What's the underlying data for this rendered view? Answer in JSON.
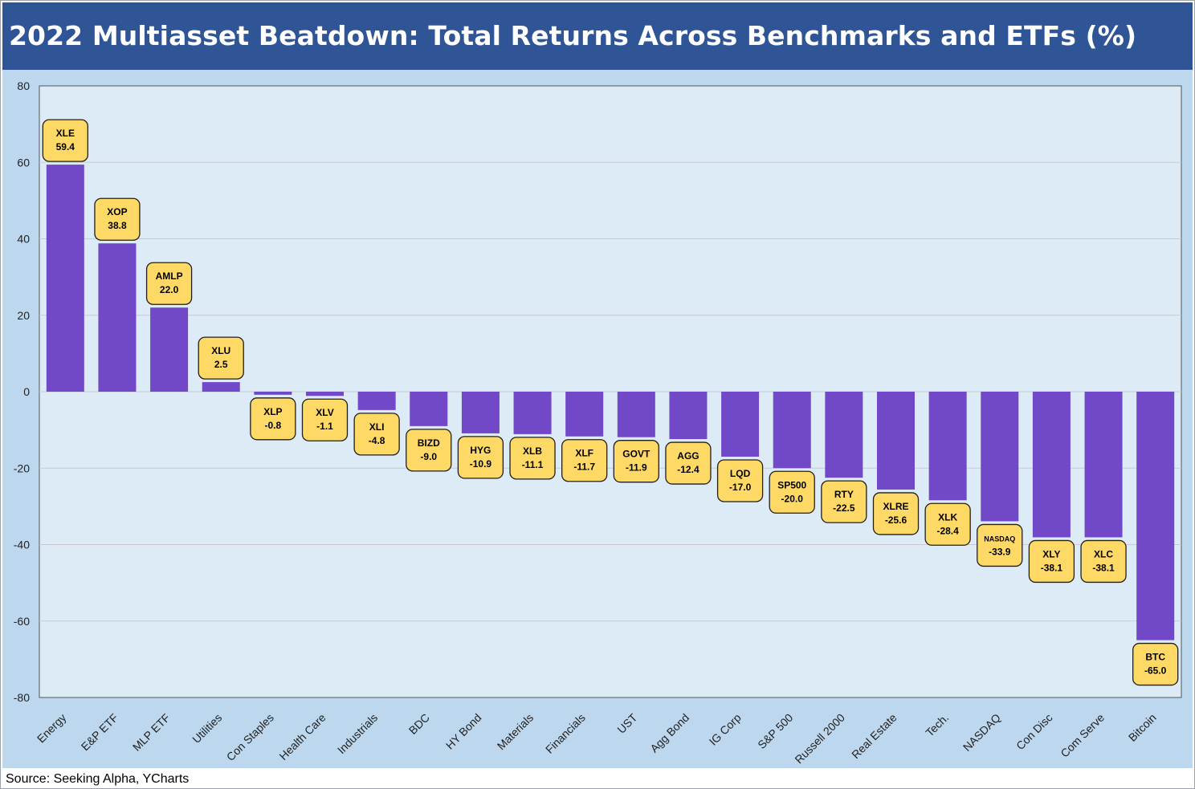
{
  "title": "2022 Multiasset Beatdown: Total Returns Across Benchmarks and ETFs (%)",
  "source": "Source: Seeking Alpha, YCharts",
  "colors": {
    "title_bg": "#2f5597",
    "chart_bg": "#bdd7ee",
    "plot_bg": "#ddebf7",
    "bar": "#7048c8",
    "label_fill": "#ffd966",
    "label_border": "#1f1f1f"
  },
  "chart_data": {
    "type": "bar",
    "title": "2022 Multiasset Beatdown: Total Returns Across Benchmarks and ETFs (%)",
    "xlabel": "",
    "ylabel": "",
    "ylim": [
      -80,
      80
    ],
    "yticks": [
      80,
      60,
      40,
      20,
      0,
      -20,
      -40,
      -60,
      -80
    ],
    "grid": true,
    "categories": [
      "Energy",
      "E&P ETF",
      "MLP ETF",
      "Utilities",
      "Con Staples",
      "Health Care",
      "Industrials",
      "BDC",
      "HY Bond",
      "Materials",
      "Financials",
      "UST",
      "Agg Bond",
      "IG Corp",
      "S&P 500",
      "Russell 2000",
      "Real Estate",
      "Tech.",
      "NASDAQ",
      "Con Disc",
      "Com Serve",
      "Bitcoin"
    ],
    "tickers": [
      "XLE",
      "XOP",
      "AMLP",
      "XLU",
      "XLP",
      "XLV",
      "XLI",
      "BIZD",
      "HYG",
      "XLB",
      "XLF",
      "GOVT",
      "AGG",
      "LQD",
      "SP500",
      "RTY",
      "XLRE",
      "XLK",
      "NASDAQ",
      "XLY",
      "XLC",
      "BTC"
    ],
    "values": [
      59.4,
      38.8,
      22.0,
      2.5,
      -0.8,
      -1.1,
      -4.8,
      -9.0,
      -10.9,
      -11.1,
      -11.7,
      -11.9,
      -12.4,
      -17.0,
      -20.0,
      -22.5,
      -25.6,
      -28.4,
      -33.9,
      -38.1,
      -38.1,
      -65.0
    ],
    "value_labels": [
      "59.4",
      "38.8",
      "22.0",
      "2.5",
      "-0.8",
      "-1.1",
      "-4.8",
      "-9.0",
      "-10.9",
      "-11.1",
      "-11.7",
      "-11.9",
      "-12.4",
      "-17.0",
      "-20.0",
      "-22.5",
      "-25.6",
      "-28.4",
      "-33.9",
      "-38.1",
      "-38.1",
      "-65.0"
    ]
  }
}
